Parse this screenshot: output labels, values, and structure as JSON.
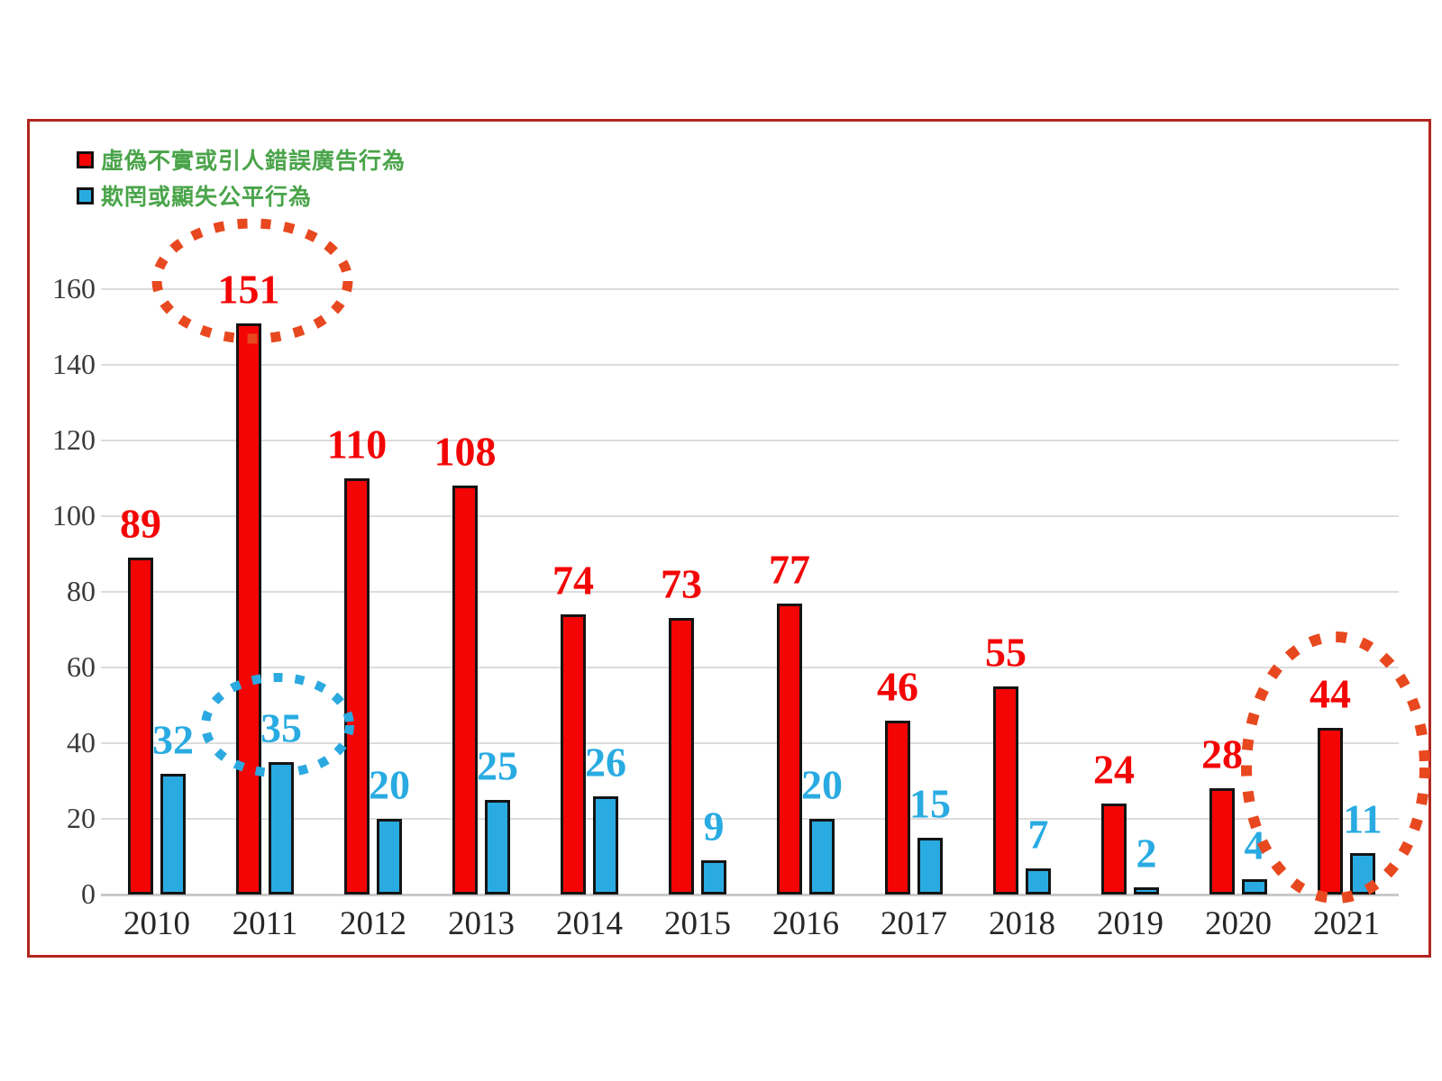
{
  "chart_data": {
    "type": "bar",
    "title": "",
    "categories": [
      "2010",
      "2011",
      "2012",
      "2013",
      "2014",
      "2015",
      "2016",
      "2017",
      "2018",
      "2019",
      "2020",
      "2021"
    ],
    "series": [
      {
        "name": "虛偽不實或引人錯誤廣告行為",
        "color": "#F40505",
        "values": [
          89,
          151,
          110,
          108,
          74,
          73,
          77,
          46,
          55,
          24,
          28,
          44
        ]
      },
      {
        "name": "欺罔或顯失公平行為",
        "color": "#29ABE2",
        "values": [
          32,
          35,
          20,
          25,
          26,
          9,
          20,
          15,
          7,
          2,
          4,
          11
        ]
      }
    ],
    "xlabel": "",
    "ylabel": "",
    "ylim": [
      0,
      160
    ],
    "yticks": [
      0,
      20,
      40,
      60,
      80,
      100,
      120,
      140,
      160
    ],
    "grid": "horizontal-light-gray",
    "legend_position": "top-left",
    "legend_text_color": "#4AA44A",
    "data_label_colors": {
      "series0": "#F40505",
      "series1": "#29ABE2"
    },
    "frame_border_color": "#B2261F",
    "annotations": [
      {
        "shape": "dotted-ellipse",
        "color": "#E8481F",
        "target": "2011 red data label 151"
      },
      {
        "shape": "dotted-ellipse",
        "color": "#2BA9E0",
        "target": "2011 blue data label 35"
      },
      {
        "shape": "dotted-ellipse",
        "color": "#E8481F",
        "target": "2021 bars 44 and 11"
      }
    ]
  }
}
